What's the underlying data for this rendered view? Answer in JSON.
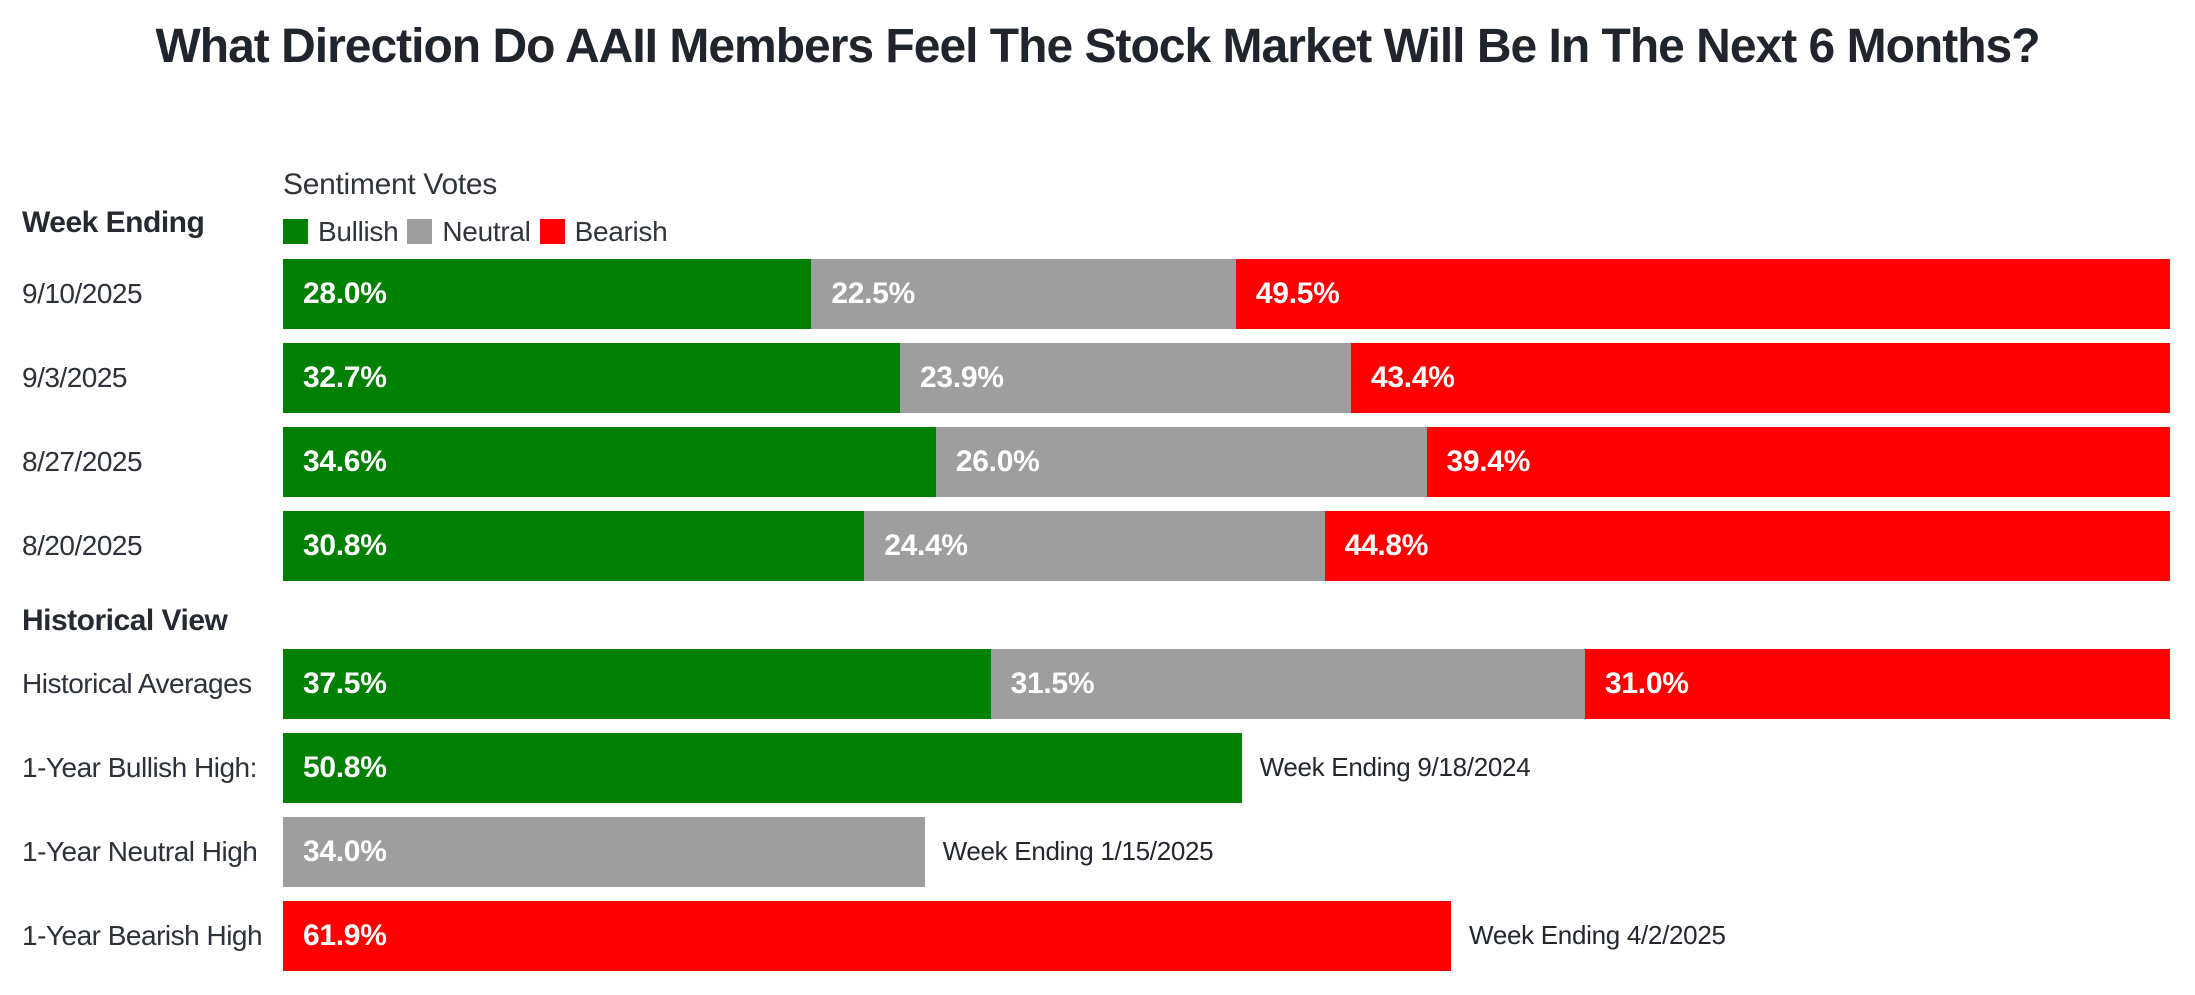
{
  "title": "What Direction Do AAII Members Feel The Stock Market Will Be In The Next 6 Months?",
  "left_header": "Week Ending",
  "historical_header": "Historical View",
  "legend": {
    "title": "Sentiment Votes",
    "items": [
      {
        "label": "Bullish",
        "color": "#008000"
      },
      {
        "label": "Neutral",
        "color": "#9e9e9e"
      },
      {
        "label": "Bearish",
        "color": "#fe0000"
      }
    ]
  },
  "colors": {
    "bullish": "#008000",
    "neutral": "#9e9e9e",
    "bearish": "#fe0000",
    "text_dark": "#252a32",
    "bar_label": "#ffffff"
  },
  "chart_data": {
    "type": "bar",
    "orientation": "horizontal",
    "stacked": true,
    "unit": "%",
    "xlim": [
      0,
      100
    ],
    "series_names": [
      "Bullish",
      "Neutral",
      "Bearish"
    ],
    "weekly": {
      "categories": [
        "9/10/2025",
        "9/3/2025",
        "8/27/2025",
        "8/20/2025"
      ],
      "series": [
        {
          "name": "Bullish",
          "values": [
            28.0,
            32.7,
            34.6,
            30.8
          ]
        },
        {
          "name": "Neutral",
          "values": [
            22.5,
            23.9,
            26.0,
            24.4
          ]
        },
        {
          "name": "Bearish",
          "values": [
            49.5,
            43.4,
            39.4,
            44.8
          ]
        }
      ]
    },
    "historical": [
      {
        "label": "Historical Averages",
        "bullish": 37.5,
        "neutral": 31.5,
        "bearish": 31.0
      },
      {
        "label": "1-Year Bullish High:",
        "series": "Bullish",
        "value": 50.8,
        "annotation": "Week Ending 9/18/2024"
      },
      {
        "label": "1-Year Neutral High",
        "series": "Neutral",
        "value": 34.0,
        "annotation": "Week Ending 1/15/2025"
      },
      {
        "label": "1-Year Bearish High",
        "series": "Bearish",
        "value": 61.9,
        "annotation": "Week Ending 4/2/2025"
      }
    ]
  }
}
